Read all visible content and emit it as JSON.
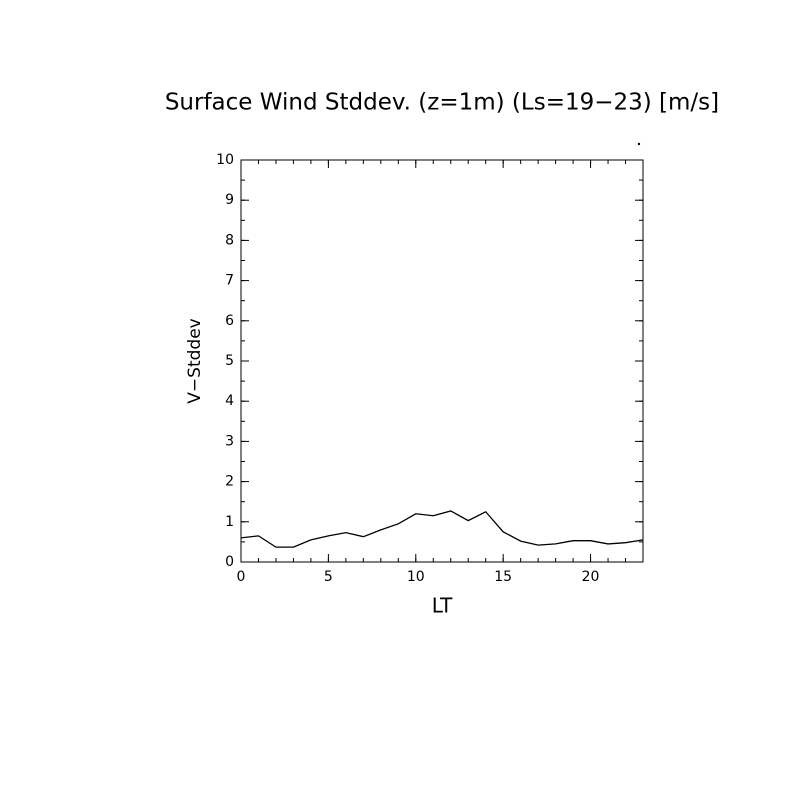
{
  "chart_data": {
    "type": "line",
    "title": "Surface Wind Stddev. (z=1m) (Ls=19−23) [m/s]",
    "x_label": "LT",
    "y_label": "V−Stddev",
    "x": [
      0,
      1,
      2,
      3,
      4,
      5,
      6,
      7,
      8,
      9,
      10,
      11,
      12,
      13,
      14,
      15,
      16,
      17,
      18,
      19,
      20,
      21,
      22,
      23
    ],
    "series": [
      {
        "color": "#000000",
        "values": [
          0.6,
          0.65,
          0.37,
          0.37,
          0.55,
          0.65,
          0.73,
          0.63,
          0.8,
          0.95,
          1.2,
          1.15,
          1.27,
          1.03,
          1.25,
          0.75,
          0.52,
          0.42,
          0.45,
          0.53,
          0.53,
          0.45,
          0.48,
          0.55
        ]
      }
    ],
    "xlim": [
      0,
      23
    ],
    "xticks": [
      0,
      5,
      10,
      15,
      20
    ],
    "ylim": [
      0,
      10
    ],
    "yticks": [
      0,
      1,
      2,
      3,
      4,
      5,
      6,
      7,
      8,
      9,
      10
    ]
  }
}
